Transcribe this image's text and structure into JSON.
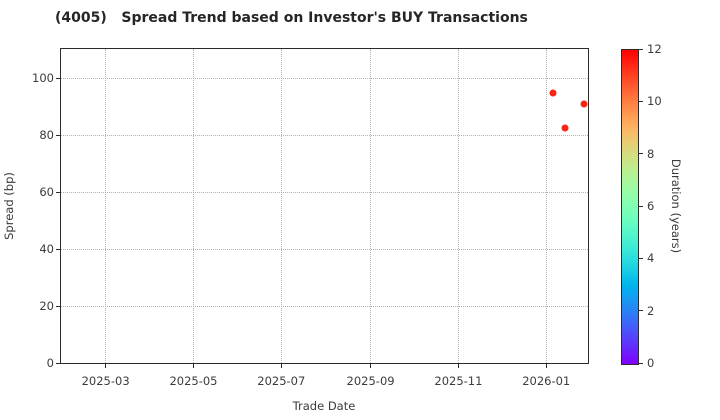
{
  "chart_data": {
    "type": "scatter",
    "title": "(4005)   Spread Trend based on Investor's BUY Transactions",
    "xlabel": "Trade Date",
    "ylabel": "Spread (bp)",
    "grid": true,
    "grid_style": "dotted",
    "x_axis": {
      "min_date": "2025-01-29",
      "max_date": "2026-01-30",
      "ticks": [
        {
          "label": "2025-03",
          "date": "2025-03-01"
        },
        {
          "label": "2025-05",
          "date": "2025-05-01"
        },
        {
          "label": "2025-07",
          "date": "2025-07-01"
        },
        {
          "label": "2025-09",
          "date": "2025-09-01"
        },
        {
          "label": "2025-11",
          "date": "2025-11-01"
        },
        {
          "label": "2026-01",
          "date": "2026-01-01"
        }
      ]
    },
    "y_axis": {
      "min": 0,
      "max": 110.3,
      "ticks": [
        0,
        20,
        40,
        60,
        80,
        100
      ],
      "grid_ticks": [
        20,
        40,
        60,
        80,
        100
      ]
    },
    "points": [
      {
        "trade_date": "2026-01-06",
        "spread_bp": 95.0,
        "duration_years": 11.5
      },
      {
        "trade_date": "2026-01-14",
        "spread_bp": 82.5,
        "duration_years": 11.5
      },
      {
        "trade_date": "2026-01-27",
        "spread_bp": 91.0,
        "duration_years": 11.5
      }
    ],
    "colorbar": {
      "label": "Duration (years)",
      "min": 0,
      "max": 12,
      "ticks": [
        0,
        2,
        4,
        6,
        8,
        10,
        12
      ],
      "colormap": "rainbow",
      "color_min": "#8000ff",
      "color_max": "#ff0000"
    }
  },
  "colors": {
    "background": "#ffffff",
    "title_text": "#262626",
    "tick_text": "#3c3c3c",
    "spine": "#2b2b2b",
    "grid": "#b3b3b3",
    "point": "#ff2111"
  }
}
